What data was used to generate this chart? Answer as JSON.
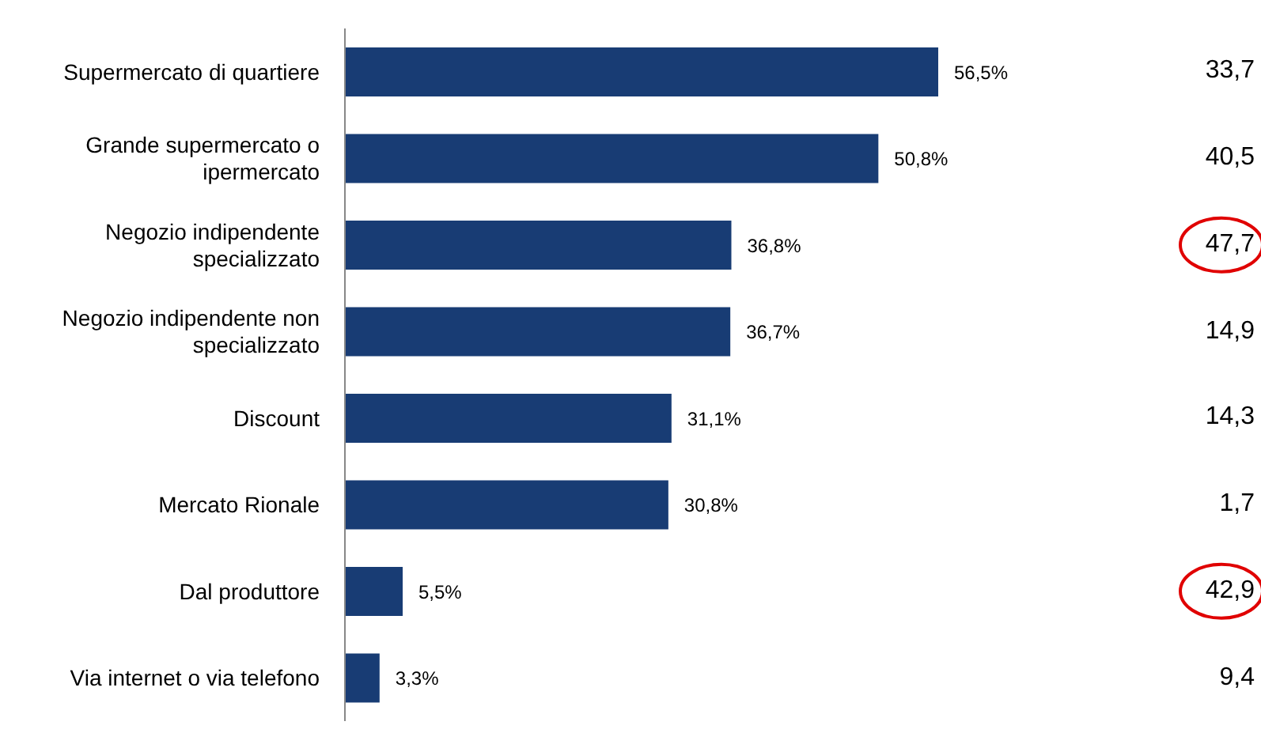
{
  "chart_data": {
    "type": "bar",
    "orientation": "horizontal",
    "categories": [
      "Supermercato di quartiere",
      "Grande supermercato o ipermercato",
      "Negozio indipendente specializzato",
      "Negozio indipendente non specializzato",
      "Discount",
      "Mercato Rionale",
      "Dal produttore",
      "Via internet o via telefono"
    ],
    "values": [
      56.5,
      50.8,
      36.8,
      36.7,
      31.1,
      30.8,
      5.5,
      3.3
    ],
    "value_labels": [
      "56,5%",
      "50,8%",
      "36,8%",
      "36,7%",
      "31,1%",
      "30,8%",
      "5,5%",
      "3,3%"
    ],
    "color": "#183c74",
    "annotations": [
      "33,7",
      "40,5",
      "47,7",
      "14,9",
      "14,3",
      "1,7",
      "42,9",
      "9,4"
    ],
    "grid": false,
    "legend": false
  }
}
